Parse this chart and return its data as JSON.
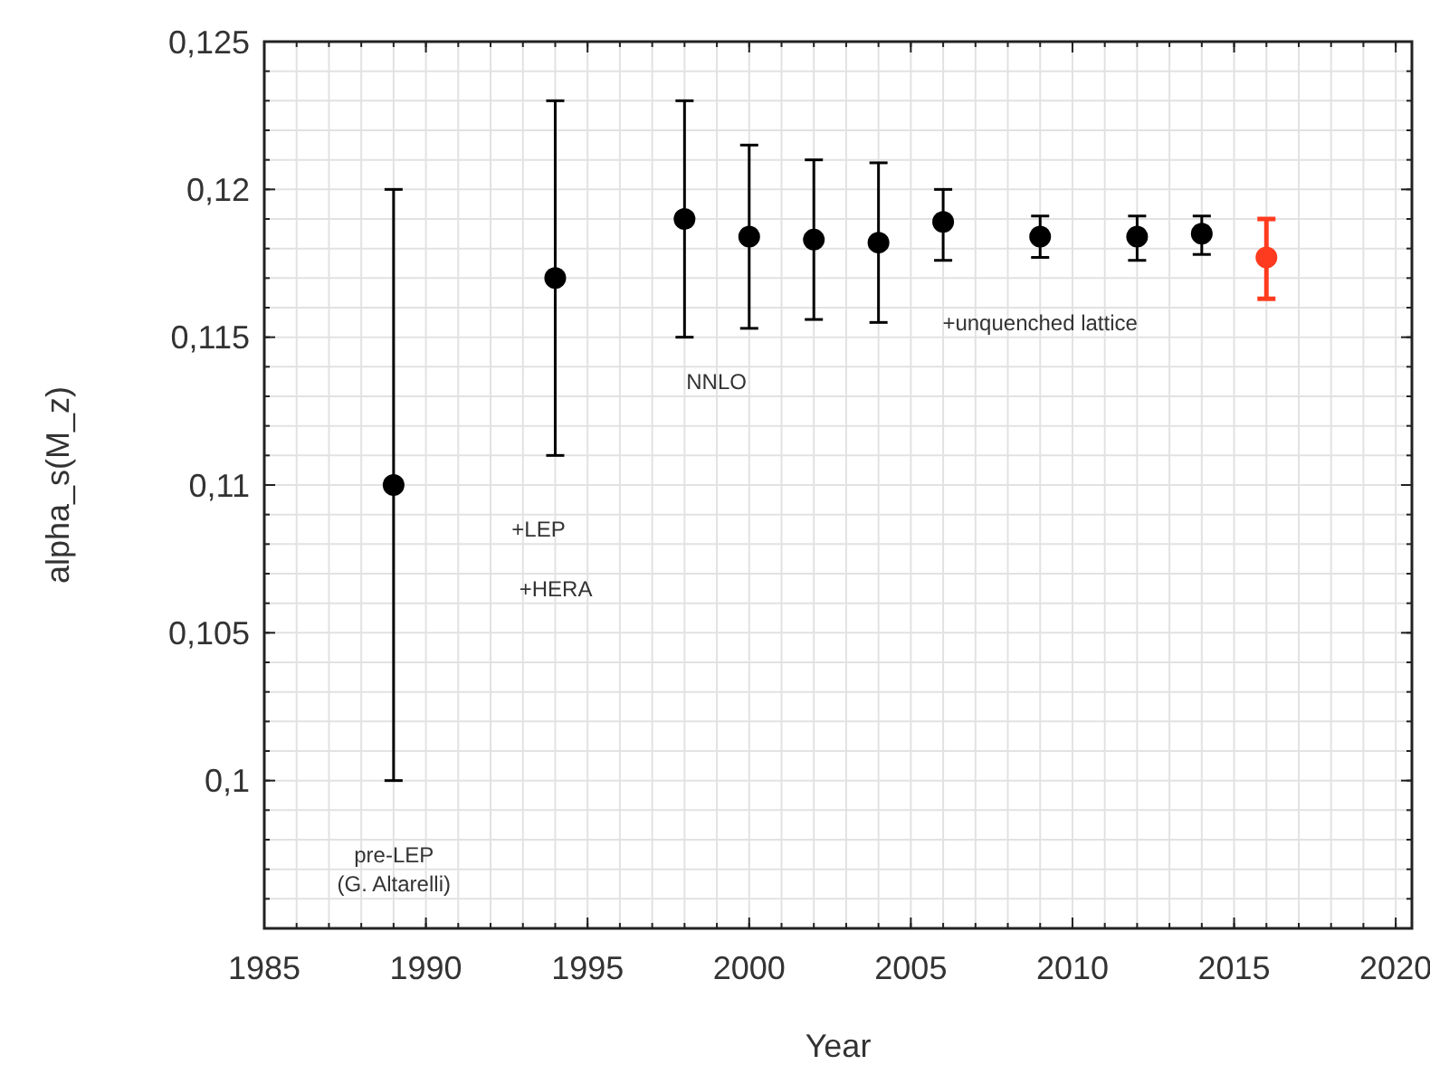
{
  "chart_data": {
    "type": "scatter",
    "xlabel": "Year",
    "ylabel": "alpha_s(M_z)",
    "xlim": [
      1985,
      2020.5
    ],
    "ylim": [
      0.095,
      0.125
    ],
    "xticks": [
      1985,
      1990,
      1995,
      2000,
      2005,
      2010,
      2015,
      2020
    ],
    "yticks": [
      {
        "value": 0.1,
        "label": "0,1"
      },
      {
        "value": 0.105,
        "label": "0,105"
      },
      {
        "value": 0.11,
        "label": "0,11"
      },
      {
        "value": 0.115,
        "label": "0,115"
      },
      {
        "value": 0.12,
        "label": "0,12"
      },
      {
        "value": 0.125,
        "label": "0,125"
      }
    ],
    "grid": true,
    "marker": "circle",
    "series": [
      {
        "color": "#000000",
        "x": [
          1989,
          1994,
          1998,
          2000,
          2002,
          2004,
          2006,
          2009,
          2012,
          2014
        ],
        "values": [
          0.11,
          0.117,
          0.119,
          0.1184,
          0.1183,
          0.1182,
          0.1189,
          0.1184,
          0.1184,
          0.1185
        ],
        "errors": [
          [
            0.1,
            0.12
          ],
          [
            0.111,
            0.123
          ],
          [
            0.115,
            0.123
          ],
          [
            0.1153,
            0.1215
          ],
          [
            0.1156,
            0.121
          ],
          [
            0.1155,
            0.1209
          ],
          [
            0.1176,
            0.12
          ],
          [
            0.1177,
            0.1191
          ],
          [
            0.1176,
            0.1191
          ],
          [
            0.1178,
            0.1191
          ]
        ]
      },
      {
        "color": "#ff3b1f",
        "x": [
          2016
        ],
        "values": [
          0.1177
        ],
        "errors": [
          [
            0.1163,
            0.119
          ]
        ]
      }
    ],
    "annotations": [
      "pre-LEP",
      "(G. Altarelli)",
      "+LEP",
      "+HERA",
      "NNLO",
      "+unquenched lattice"
    ]
  }
}
